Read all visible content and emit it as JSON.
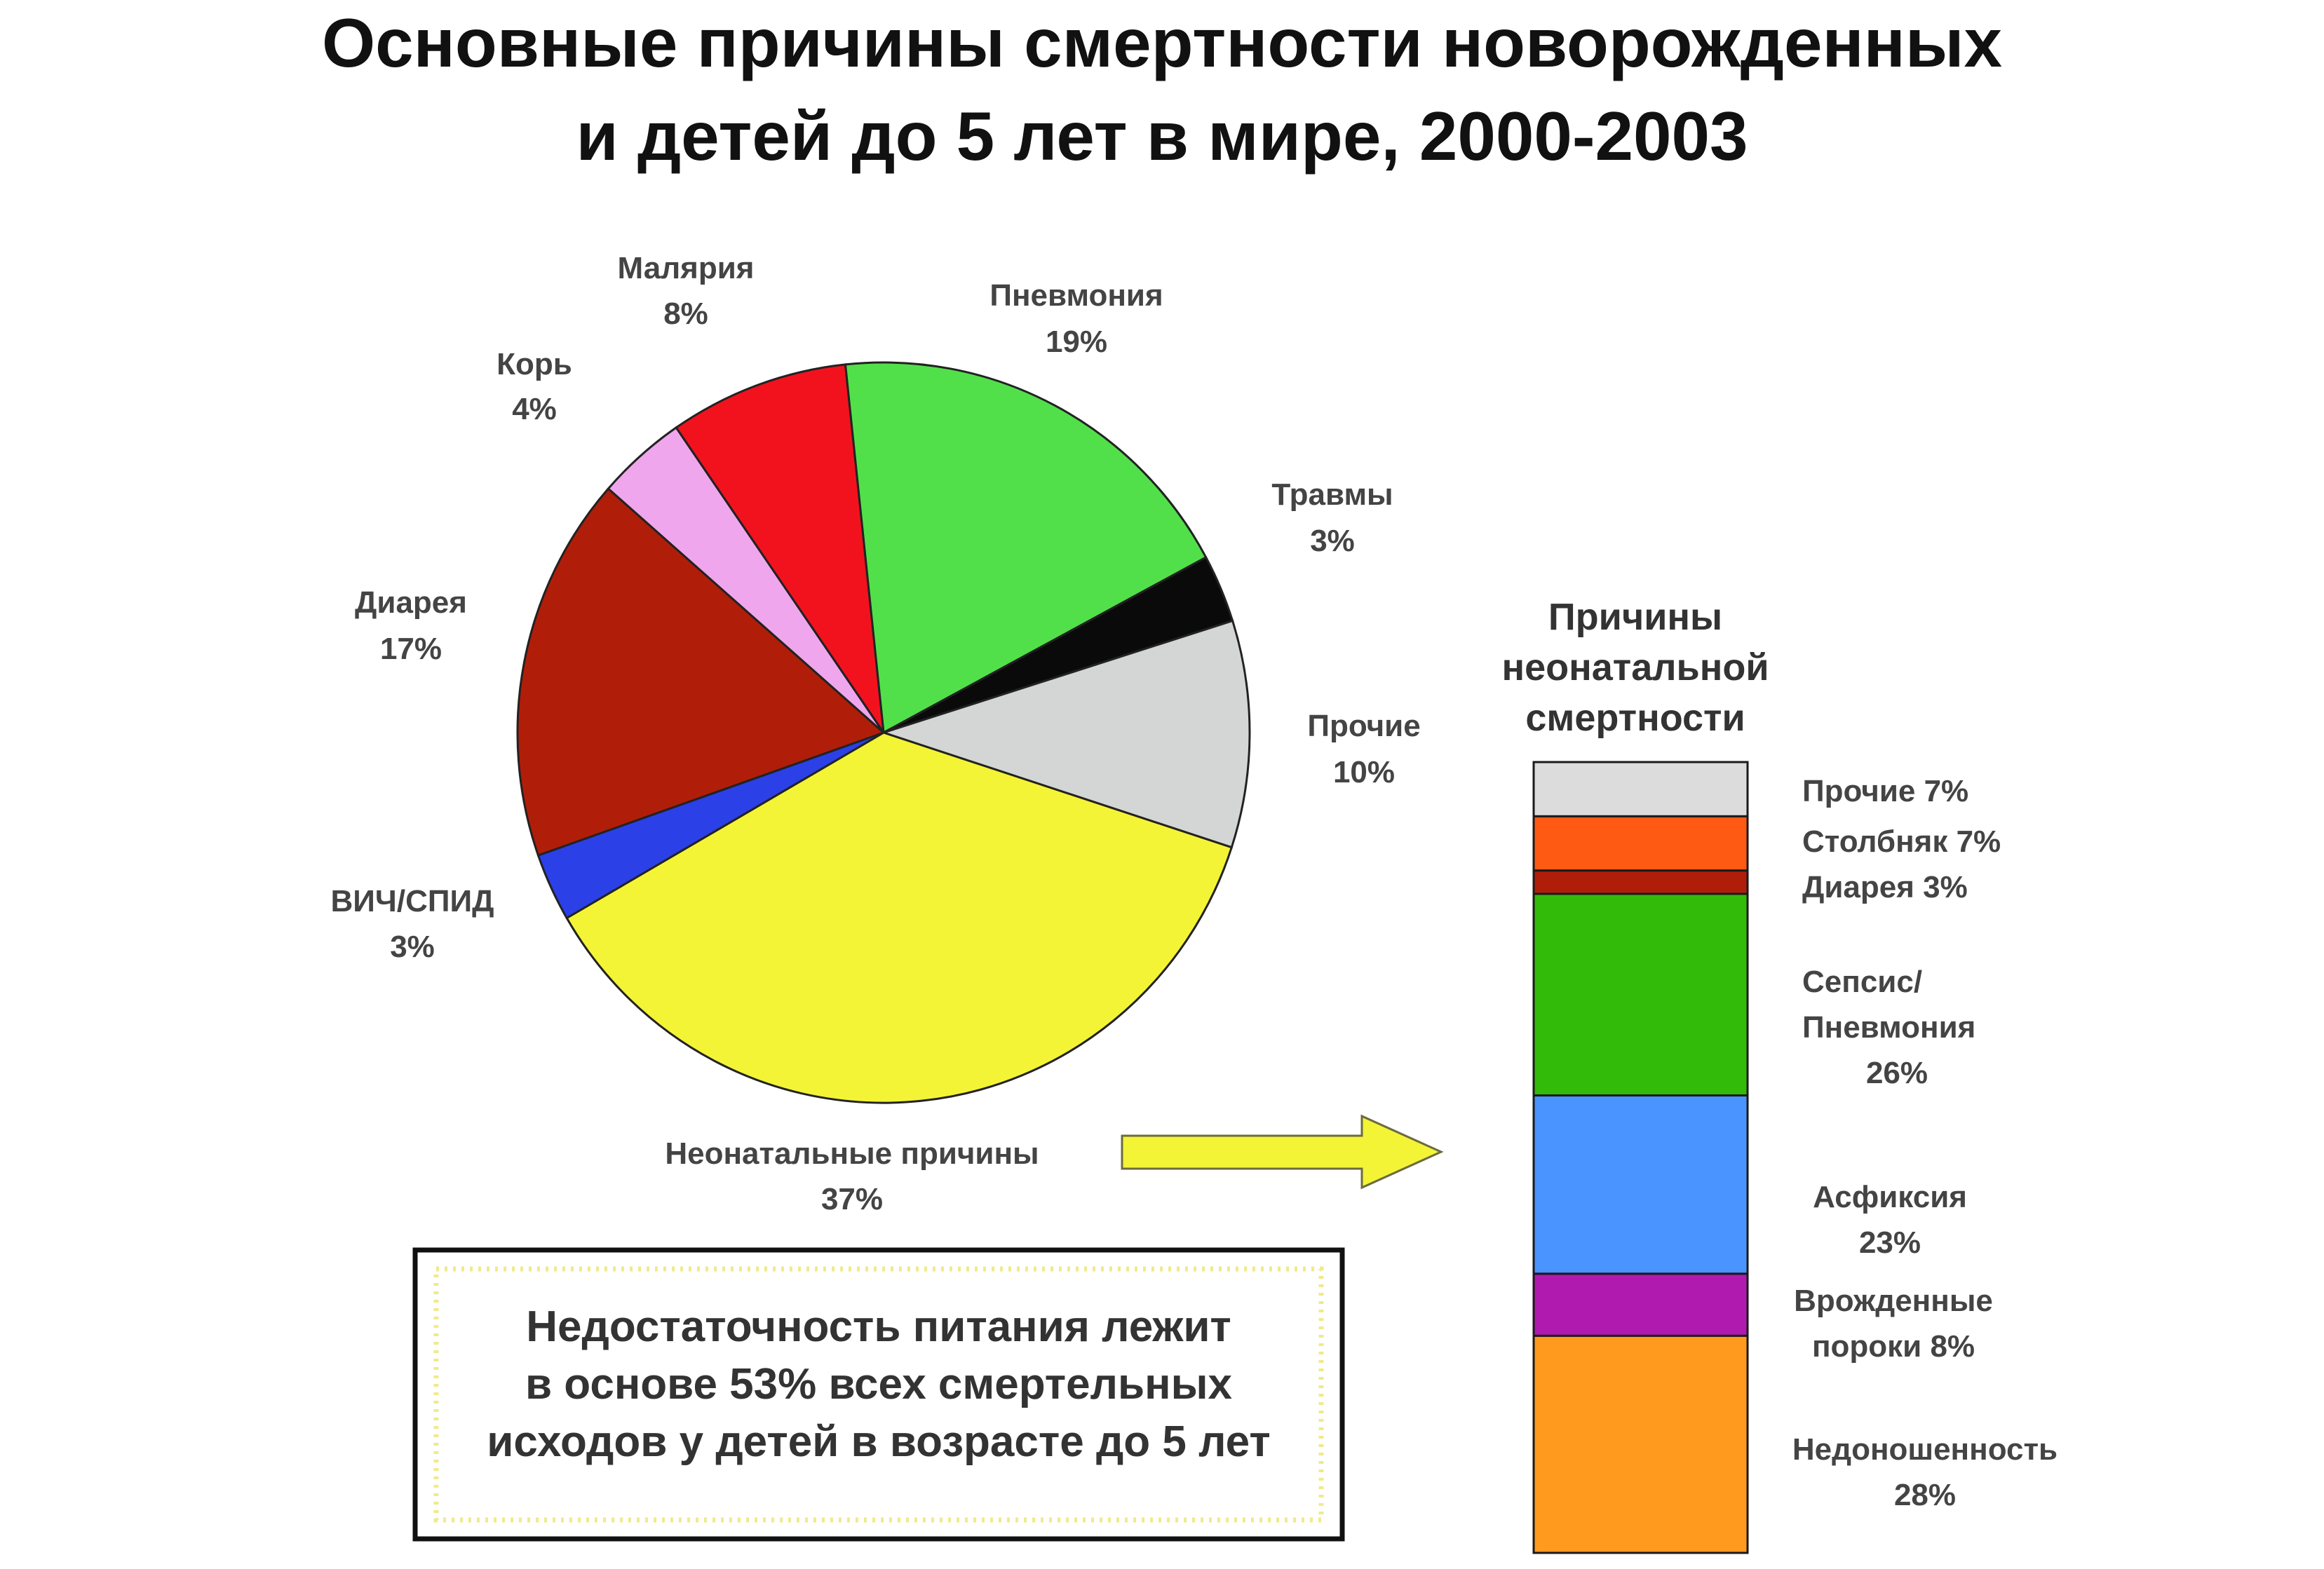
{
  "title_lines": [
    "Основные причины смертности новорожденных",
    "и детей до 5 лет в мире, 2000-2003"
  ],
  "note_lines": [
    "Недостаточность питания лежит",
    "в основе 53% всех смертельных",
    "исходов у детей в возрасте до 5 лет"
  ],
  "chart_data": [
    {
      "type": "pie",
      "slices": [
        {
          "label": "Пневмония",
          "value": 19,
          "value_text": "19%",
          "color": "#52e04a"
        },
        {
          "label": "Травмы",
          "value": 3,
          "value_text": "3%",
          "color": "#0a0a0a"
        },
        {
          "label": "Прочие",
          "value": 10,
          "value_text": "10%",
          "color": "#d4d6d6"
        },
        {
          "label": "Неонатальные причины",
          "value": 37,
          "value_text": "37%",
          "color": "#f4f436"
        },
        {
          "label": "ВИЧ/СПИД",
          "value": 3,
          "value_text": "3%",
          "color": "#2c40e8"
        },
        {
          "label": "Диарея",
          "value": 17,
          "value_text": "17%",
          "color": "#b01e0a"
        },
        {
          "label": "Корь",
          "value": 4,
          "value_text": "4%",
          "color": "#f0a6ec"
        },
        {
          "label": "Малярия",
          "value": 8,
          "value_text": "8%",
          "color": "#f2121e"
        }
      ]
    },
    {
      "type": "bar",
      "stacked": true,
      "title_lines": [
        "Причины",
        "неонатальной",
        "смертности"
      ],
      "segments": [
        {
          "label_lines": [
            "Прочие 7%"
          ],
          "value": 7,
          "color": "#dcdcdc"
        },
        {
          "label_lines": [
            "Столбняк 7%"
          ],
          "value": 7,
          "color": "#ff5a14"
        },
        {
          "label_lines": [
            "Диарея 3%"
          ],
          "value": 3,
          "color": "#b01e0a"
        },
        {
          "label_lines": [
            "Сепсис/",
            "Пневмония",
            "26%"
          ],
          "value": 26,
          "color": "#33bb0a"
        },
        {
          "label_lines": [
            "Асфиксия",
            "23%"
          ],
          "value": 23,
          "color": "#4a94ff"
        },
        {
          "label_lines": [
            "Врожденные",
            "пороки 8%"
          ],
          "value": 8,
          "color": "#b01aae"
        },
        {
          "label_lines": [
            "Недоношенность",
            "28%"
          ],
          "value": 28,
          "color": "#ff9a1e"
        }
      ]
    }
  ]
}
